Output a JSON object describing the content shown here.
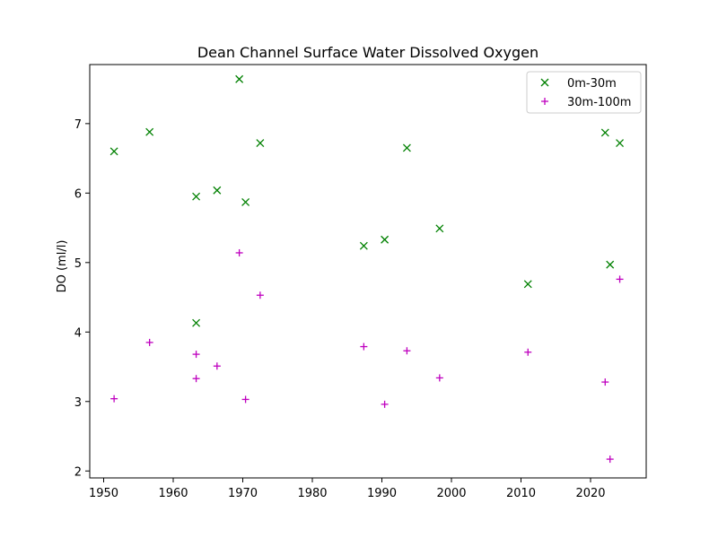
{
  "chart_data": {
    "type": "scatter",
    "title": "Dean Channel Surface Water Dissolved Oxygen",
    "xlabel": "",
    "ylabel": "DO (ml/l)",
    "xlim": [
      1948,
      2028
    ],
    "ylim": [
      1.9,
      7.85
    ],
    "xticks": [
      1950,
      1960,
      1970,
      1980,
      1990,
      2000,
      2010,
      2020
    ],
    "yticks": [
      2,
      3,
      4,
      5,
      6,
      7
    ],
    "grid": false,
    "legend_position": "top-right",
    "series": [
      {
        "name": "0m-30m",
        "marker": "x",
        "color": "#008000",
        "x": [
          1951.5,
          1956.6,
          1963.3,
          1963.3,
          1966.3,
          1969.5,
          1970.4,
          1972.5,
          1987.4,
          1990.4,
          1993.6,
          1998.3,
          2011.0,
          2022.1,
          2022.8,
          2024.2
        ],
        "y": [
          6.6,
          6.88,
          5.95,
          4.13,
          6.04,
          7.64,
          5.87,
          6.72,
          5.24,
          5.33,
          6.65,
          5.49,
          4.69,
          6.87,
          4.97,
          6.72
        ]
      },
      {
        "name": "30m-100m",
        "marker": "+",
        "color": "#bf00bf",
        "x": [
          1951.5,
          1956.6,
          1963.3,
          1963.3,
          1966.3,
          1969.5,
          1970.4,
          1972.5,
          1987.4,
          1990.4,
          1993.6,
          1998.3,
          2011.0,
          2022.1,
          2022.8,
          2024.2
        ],
        "y": [
          3.04,
          3.85,
          3.68,
          3.33,
          3.51,
          5.14,
          3.03,
          4.53,
          3.79,
          2.96,
          3.73,
          3.34,
          3.71,
          3.28,
          2.17,
          4.76
        ]
      }
    ]
  }
}
